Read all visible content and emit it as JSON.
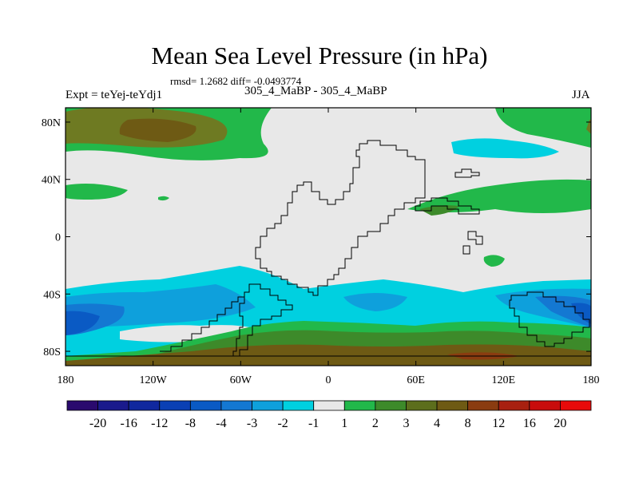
{
  "chart_data": {
    "type": "contour-map",
    "title": "Mean Sea Level Pressure (in hPa)",
    "stats_text": "rmsd= 1.2682 diff= -0.0493774",
    "left_label": "Expt = teYej-teYdj1",
    "center_label": "305_4_MaBP - 305_4_MaBP",
    "right_label": "JJA",
    "x_axis": {
      "range": [
        -180,
        180
      ],
      "ticks": [
        -180,
        -120,
        -60,
        0,
        60,
        120,
        180
      ],
      "tick_labels": [
        "180",
        "120W",
        "60W",
        "0",
        "60E",
        "120E",
        "180"
      ]
    },
    "y_axis": {
      "range": [
        -90,
        90
      ],
      "ticks": [
        80,
        40,
        0,
        -40,
        -80
      ],
      "tick_labels": [
        "80N",
        "40N",
        "0",
        "40S",
        "80S"
      ]
    },
    "colorbar": {
      "colors": [
        "#2a0a6e",
        "#1a1a8c",
        "#10289e",
        "#0a40b4",
        "#0a5ac4",
        "#1478d2",
        "#0ea0dc",
        "#00d0e0",
        "#e8e8e8",
        "#22b84a",
        "#3d8a2a",
        "#5c6e1c",
        "#6e5a14",
        "#8a3c10",
        "#a82010",
        "#c80c0c",
        "#e80a0a"
      ],
      "labels": [
        "-20",
        "-16",
        "-12",
        "-8",
        "-4",
        "-3",
        "-2",
        "-1",
        "1",
        "2",
        "3",
        "4",
        "8",
        "12",
        "16",
        "20"
      ]
    }
  }
}
